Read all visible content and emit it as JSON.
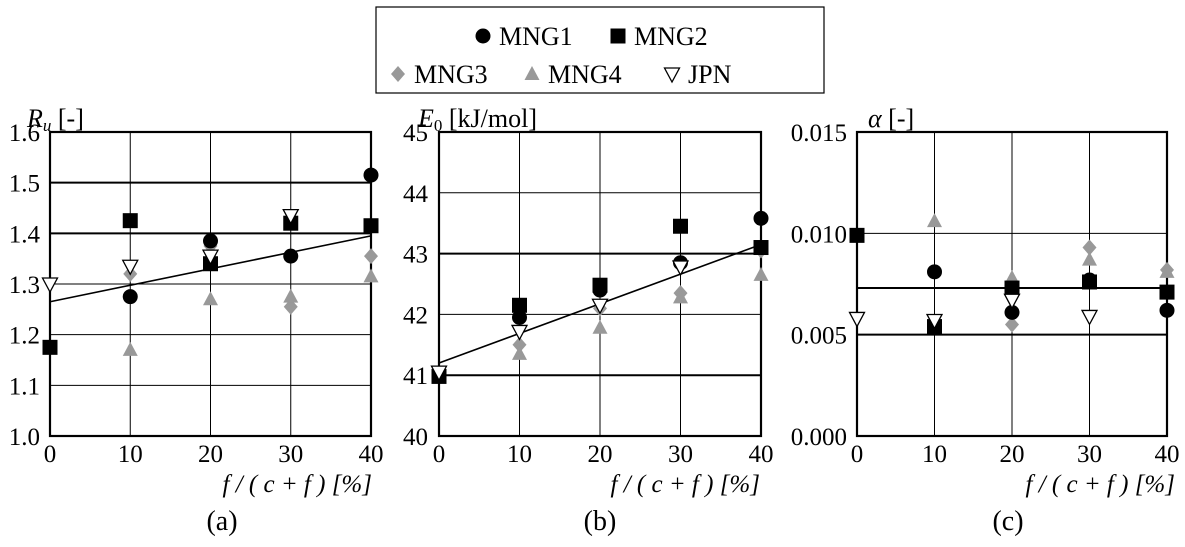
{
  "legend": {
    "entries": [
      {
        "name": "MNG1",
        "marker": "circle",
        "color": "#000000"
      },
      {
        "name": "MNG2",
        "marker": "square",
        "color": "#000000"
      },
      {
        "name": "MNG3",
        "marker": "diamond",
        "color": "#999999"
      },
      {
        "name": "MNG4",
        "marker": "triangle-up",
        "color": "#999999"
      },
      {
        "name": "JPN",
        "marker": "triangle-down-open",
        "color": "#000000"
      }
    ]
  },
  "chart_data": [
    {
      "type": "scatter",
      "panel": "(a)",
      "ylabel_main": "R",
      "ylabel_sub": "u",
      "ylabel_unit": " [-]",
      "xlabel": "f / ( c + f ) [%]",
      "xlim": [
        0,
        40
      ],
      "ylim": [
        1.0,
        1.6
      ],
      "xticks": [
        0,
        10,
        20,
        30,
        40
      ],
      "yticks": [
        1.0,
        1.1,
        1.2,
        1.3,
        1.4,
        1.5,
        1.6
      ],
      "ytick_labels": [
        "1.0",
        "1.1",
        "1.2",
        "1.3",
        "1.4",
        "1.5",
        "1.6"
      ],
      "grid_x": [
        10,
        20,
        30
      ],
      "grid_y_bold": [
        1.4,
        1.5
      ],
      "grid_y_thin": [
        1.1,
        1.2,
        1.3
      ],
      "trendline": {
        "x": [
          0,
          40
        ],
        "y": [
          1.265,
          1.395
        ]
      },
      "series": [
        {
          "name": "MNG1",
          "points": [
            [
              10,
              1.275
            ],
            [
              20,
              1.385
            ],
            [
              30,
              1.355
            ],
            [
              40,
              1.515
            ]
          ]
        },
        {
          "name": "MNG2",
          "points": [
            [
              0,
              1.175
            ],
            [
              10,
              1.425
            ],
            [
              20,
              1.34
            ],
            [
              30,
              1.42
            ],
            [
              40,
              1.415
            ]
          ]
        },
        {
          "name": "MNG3",
          "points": [
            [
              10,
              1.32
            ],
            [
              20,
              1.375
            ],
            [
              30,
              1.255
            ],
            [
              40,
              1.355
            ]
          ]
        },
        {
          "name": "MNG4",
          "points": [
            [
              10,
              1.17
            ],
            [
              20,
              1.27
            ],
            [
              30,
              1.275
            ],
            [
              40,
              1.315
            ]
          ]
        },
        {
          "name": "JPN",
          "points": [
            [
              0,
              1.3
            ],
            [
              10,
              1.335
            ],
            [
              20,
              1.355
            ],
            [
              30,
              1.435
            ]
          ]
        }
      ]
    },
    {
      "type": "scatter",
      "panel": "(b)",
      "ylabel_main": "E",
      "ylabel_sub": "0",
      "ylabel_unit": " [kJ/mol]",
      "xlabel": "f / ( c + f ) [%]",
      "xlim": [
        0,
        40
      ],
      "ylim": [
        40,
        45
      ],
      "xticks": [
        0,
        10,
        20,
        30,
        40
      ],
      "yticks": [
        40,
        41,
        42,
        43,
        44,
        45
      ],
      "ytick_labels": [
        "40",
        "41",
        "42",
        "43",
        "44",
        "45"
      ],
      "grid_x": [
        10,
        20,
        30
      ],
      "grid_y_bold": [
        41,
        43
      ],
      "grid_y_thin": [
        42,
        44
      ],
      "trendline": {
        "x": [
          0,
          40
        ],
        "y": [
          41.2,
          43.15
        ]
      },
      "series": [
        {
          "name": "MNG1",
          "points": [
            [
              10,
              41.95
            ],
            [
              20,
              42.4
            ],
            [
              30,
              42.85
            ],
            [
              40,
              43.58
            ]
          ]
        },
        {
          "name": "MNG2",
          "points": [
            [
              0,
              40.98
            ],
            [
              10,
              42.15
            ],
            [
              20,
              42.48
            ],
            [
              30,
              43.45
            ],
            [
              40,
              43.1
            ]
          ]
        },
        {
          "name": "MNG3",
          "points": [
            [
              10,
              41.5
            ],
            [
              20,
              42.1
            ],
            [
              30,
              42.35
            ],
            [
              40,
              43.05
            ]
          ]
        },
        {
          "name": "MNG4",
          "points": [
            [
              10,
              41.35
            ],
            [
              20,
              41.78
            ],
            [
              30,
              42.28
            ],
            [
              40,
              42.65
            ]
          ]
        },
        {
          "name": "JPN",
          "points": [
            [
              0,
              41.05
            ],
            [
              10,
              41.72
            ],
            [
              20,
              42.15
            ],
            [
              30,
              42.78
            ]
          ]
        }
      ]
    },
    {
      "type": "scatter",
      "panel": "(c)",
      "ylabel_main": "α",
      "ylabel_sub": "",
      "ylabel_unit": " [-]",
      "xlabel": "f / ( c + f ) [%]",
      "xlim": [
        0,
        40
      ],
      "ylim": [
        0,
        0.015
      ],
      "xticks": [
        0,
        10,
        20,
        30,
        40
      ],
      "yticks": [
        0,
        0.005,
        0.01,
        0.015
      ],
      "ytick_labels": [
        "0.000",
        "0.005",
        "0.010",
        "0.015"
      ],
      "grid_x": [
        10,
        20,
        30
      ],
      "grid_y_bold": [
        0.005,
        0.0073
      ],
      "grid_y_thin": [
        0.01
      ],
      "trendline": null,
      "series": [
        {
          "name": "MNG1",
          "points": [
            [
              10,
              0.0081
            ],
            [
              20,
              0.0061
            ],
            [
              30,
              0.0077
            ],
            [
              40,
              0.0062
            ]
          ]
        },
        {
          "name": "MNG2",
          "points": [
            [
              0,
              0.0099
            ],
            [
              10,
              0.0054
            ],
            [
              20,
              0.0073
            ],
            [
              30,
              0.0076
            ],
            [
              40,
              0.0071
            ]
          ]
        },
        {
          "name": "MNG3",
          "points": [
            [
              10,
              0.0055
            ],
            [
              20,
              0.0055
            ],
            [
              30,
              0.0093
            ],
            [
              40,
              0.0082
            ]
          ]
        },
        {
          "name": "MNG4",
          "points": [
            [
              10,
              0.0106
            ],
            [
              20,
              0.0078
            ],
            [
              30,
              0.0087
            ],
            [
              40,
              0.0081
            ]
          ]
        },
        {
          "name": "JPN",
          "points": [
            [
              0,
              0.0058
            ],
            [
              10,
              0.0057
            ],
            [
              20,
              0.0067
            ],
            [
              30,
              0.0059
            ]
          ]
        }
      ]
    }
  ]
}
